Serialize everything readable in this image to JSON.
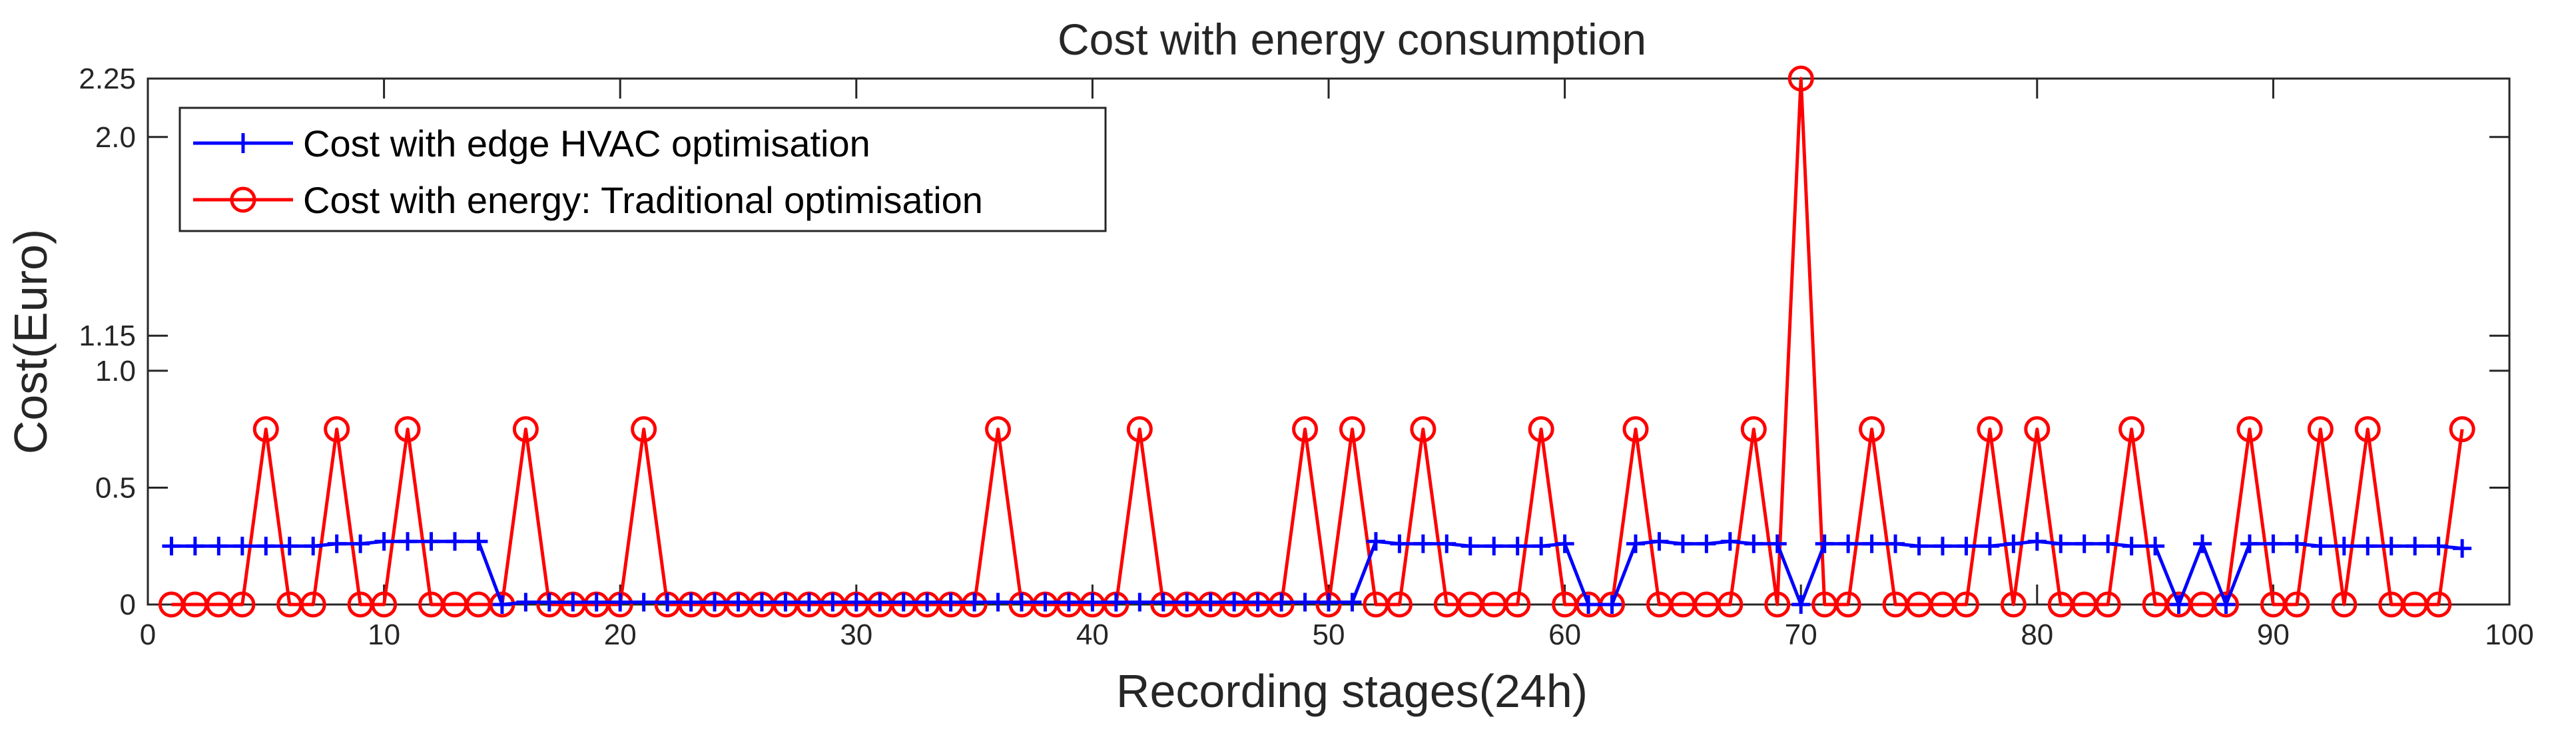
{
  "chart_data": {
    "type": "line",
    "title": "Cost with energy consumption",
    "xlabel": "Recording stages(24h)",
    "ylabel": "Cost(Euro)",
    "xlim": [
      0,
      100
    ],
    "ylim": [
      0,
      2.25
    ],
    "xticks": [
      0,
      10,
      20,
      30,
      40,
      50,
      60,
      70,
      80,
      90,
      100
    ],
    "xtick_labels": [
      "0",
      "10",
      "20",
      "30",
      "40",
      "50",
      "60",
      "70",
      "80",
      "90",
      "100"
    ],
    "yticks": [
      0,
      0.5,
      1.0,
      1.15,
      2.0,
      2.25
    ],
    "ytick_labels": [
      "0",
      "0.5",
      "1.0",
      "1.15",
      "2.0",
      "2.25"
    ],
    "grid": false,
    "legend_position": "top-left",
    "x": [
      1,
      2,
      3,
      4,
      5,
      6,
      7,
      8,
      9,
      10,
      11,
      12,
      13,
      14,
      15,
      16,
      17,
      18,
      19,
      20,
      21,
      22,
      23,
      24,
      25,
      26,
      27,
      28,
      29,
      30,
      31,
      32,
      33,
      34,
      35,
      36,
      37,
      38,
      39,
      40,
      41,
      42,
      43,
      44,
      45,
      46,
      47,
      48,
      49,
      50,
      51,
      52,
      53,
      54,
      55,
      56,
      57,
      58,
      59,
      60,
      61,
      62,
      63,
      64,
      65,
      66,
      67,
      68,
      69,
      70,
      71,
      72,
      73,
      74,
      75,
      76,
      77,
      78,
      79,
      80,
      81,
      82,
      83,
      84,
      85,
      86,
      87,
      88,
      89,
      90,
      91,
      92,
      93,
      94,
      95,
      96,
      97,
      98
    ],
    "series": [
      {
        "name": "Cost with edge HVAC optimisation",
        "color": "#0000ff",
        "marker": "plus",
        "values": [
          0.25,
          0.25,
          0.25,
          0.25,
          0.25,
          0.25,
          0.25,
          0.26,
          0.26,
          0.27,
          0.27,
          0.27,
          0.27,
          0.27,
          0.0,
          0.01,
          0.01,
          0.01,
          0.01,
          0.01,
          0.01,
          0.01,
          0.01,
          0.01,
          0.01,
          0.01,
          0.01,
          0.01,
          0.01,
          0.01,
          0.01,
          0.01,
          0.01,
          0.01,
          0.01,
          0.01,
          0.01,
          0.01,
          0.01,
          0.01,
          0.01,
          0.01,
          0.01,
          0.01,
          0.01,
          0.01,
          0.01,
          0.01,
          0.01,
          0.01,
          0.01,
          0.27,
          0.26,
          0.26,
          0.26,
          0.25,
          0.25,
          0.25,
          0.25,
          0.26,
          0.0,
          0.0,
          0.26,
          0.27,
          0.26,
          0.26,
          0.27,
          0.26,
          0.26,
          0.0,
          0.26,
          0.26,
          0.26,
          0.26,
          0.25,
          0.25,
          0.25,
          0.25,
          0.26,
          0.27,
          0.26,
          0.26,
          0.26,
          0.25,
          0.25,
          0.0,
          0.26,
          0.0,
          0.26,
          0.26,
          0.26,
          0.25,
          0.25,
          0.25,
          0.25,
          0.25,
          0.25,
          0.24
        ]
      },
      {
        "name": "Cost with energy: Traditional optimisation",
        "color": "#ff0000",
        "marker": "circle",
        "values": [
          0,
          0,
          0,
          0,
          0.75,
          0,
          0,
          0.75,
          0,
          0,
          0.75,
          0,
          0,
          0,
          0,
          0.75,
          0,
          0,
          0,
          0,
          0.75,
          0,
          0,
          0,
          0,
          0,
          0,
          0,
          0,
          0,
          0,
          0,
          0,
          0,
          0,
          0.75,
          0,
          0,
          0,
          0,
          0,
          0.75,
          0,
          0,
          0,
          0,
          0,
          0,
          0.75,
          0,
          0.75,
          0,
          0,
          0.75,
          0,
          0,
          0,
          0,
          0.75,
          0,
          0,
          0,
          0.75,
          0,
          0,
          0,
          0,
          0.75,
          0,
          2.25,
          0,
          0,
          0.75,
          0,
          0,
          0,
          0,
          0.75,
          0,
          0.75,
          0,
          0,
          0,
          0.75,
          0,
          0,
          0,
          0,
          0.75,
          0,
          0,
          0.75,
          0,
          0.75,
          0,
          0,
          0,
          0.75
        ]
      }
    ]
  }
}
